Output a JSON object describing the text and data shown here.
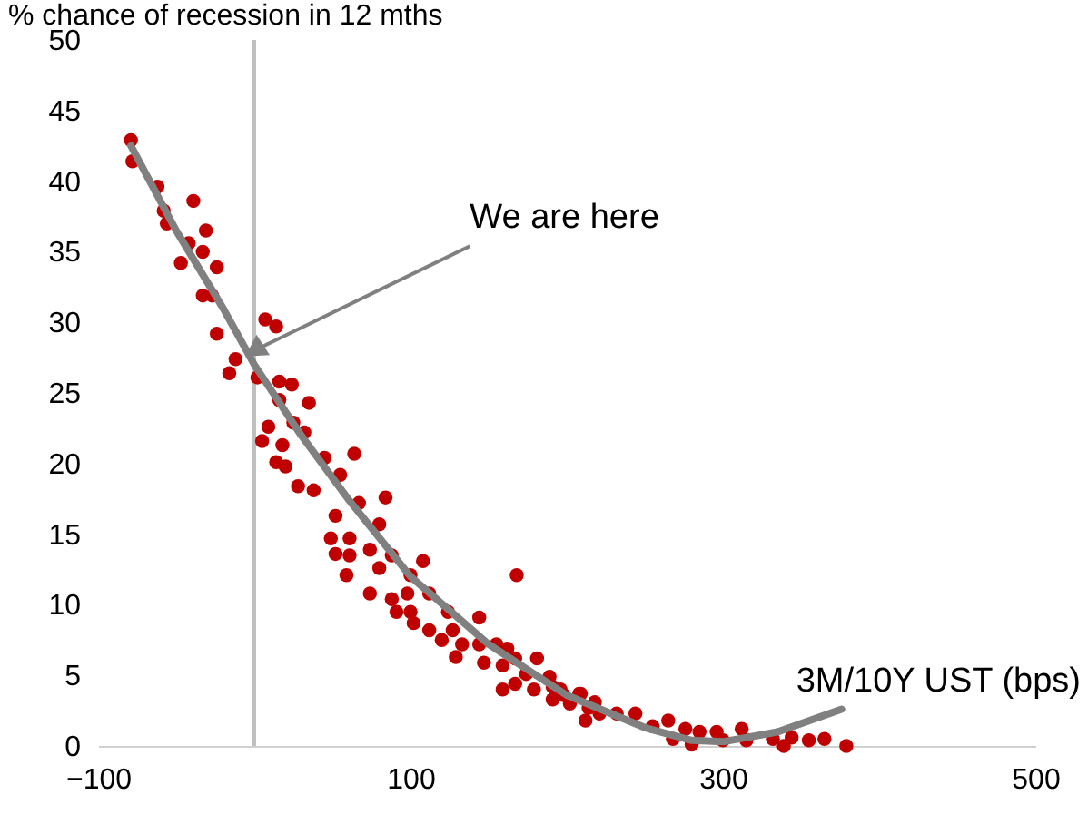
{
  "chart_data": {
    "type": "scatter",
    "ylabel": "% chance of recession in 12 mths",
    "xlabel": "3M/10Y UST (bps)",
    "xlim": [
      -100,
      500
    ],
    "xticks": [
      -100,
      100,
      300,
      500
    ],
    "ylim": [
      0,
      50
    ],
    "yticks": [
      0,
      5,
      10,
      15,
      20,
      25,
      30,
      35,
      40,
      45,
      50
    ],
    "grid": false,
    "marker": "circle",
    "series": [
      {
        "color": "#c00000",
        "x": [
          -79,
          -78,
          -62,
          -58,
          -39,
          -56,
          -31,
          -42,
          -33,
          -47,
          -24,
          -33,
          -27,
          -24,
          -12,
          -16,
          7,
          14,
          2,
          16,
          24,
          35,
          16,
          9,
          25,
          32,
          5,
          18,
          64,
          45,
          14,
          20,
          28,
          38,
          55,
          84,
          67,
          52,
          80,
          49,
          61,
          52,
          61,
          74,
          88,
          108,
          59,
          80,
          100,
          168,
          74,
          88,
          98,
          112,
          91,
          100,
          124,
          144,
          102,
          112,
          127,
          120,
          133,
          144,
          155,
          162,
          129,
          147,
          159,
          167,
          181,
          174,
          189,
          159,
          167,
          179,
          196,
          208,
          191,
          202,
          214,
          221,
          212,
          191,
          198,
          209,
          218,
          232,
          244,
          255,
          265,
          276,
          285,
          296,
          312,
          300,
          315,
          332,
          344,
          355,
          365,
          379,
          280,
          268,
          339
        ],
        "values": [
          42.9,
          41.4,
          39.6,
          37.9,
          38.6,
          37.0,
          36.5,
          35.6,
          35.0,
          34.2,
          33.9,
          31.9,
          31.9,
          29.2,
          27.4,
          26.4,
          30.2,
          29.7,
          26.1,
          25.8,
          25.6,
          24.3,
          24.5,
          22.6,
          22.9,
          22.2,
          21.6,
          21.3,
          20.7,
          20.4,
          20.1,
          19.8,
          18.4,
          18.1,
          19.2,
          17.6,
          17.2,
          16.3,
          15.7,
          14.7,
          14.7,
          13.6,
          13.5,
          13.9,
          13.5,
          13.1,
          12.1,
          12.6,
          12.1,
          12.1,
          10.8,
          10.4,
          10.8,
          10.8,
          9.5,
          9.5,
          9.5,
          9.1,
          8.7,
          8.2,
          8.2,
          7.5,
          7.2,
          7.2,
          7.2,
          6.9,
          6.3,
          5.9,
          5.7,
          6.2,
          6.2,
          5.1,
          4.9,
          4.0,
          4.4,
          4.0,
          4.0,
          3.7,
          3.3,
          3.0,
          2.7,
          2.3,
          1.8,
          4.2,
          3.6,
          3.7,
          3.1,
          2.3,
          2.3,
          1.4,
          1.8,
          1.2,
          1.0,
          1.0,
          1.2,
          0.4,
          0.4,
          0.5,
          0.6,
          0.4,
          0.5,
          0.0,
          0.1,
          0.5,
          0.0
        ]
      },
      {
        "type": "line",
        "marker": "none",
        "color": "#808080",
        "x": [
          -79,
          -50,
          -20,
          0,
          30,
          60,
          100,
          150,
          200,
          250,
          280,
          300,
          335,
          376
        ],
        "values": [
          42.5,
          36.5,
          31,
          27,
          22,
          17.5,
          12,
          7.2,
          3.6,
          1.3,
          0.4,
          0.3,
          1.0,
          2.6
        ]
      }
    ],
    "ref_lines": [
      {
        "axis": "x",
        "value": 0,
        "color": "#bfbfbf"
      }
    ],
    "annotations": [
      {
        "text": "We are here",
        "x": 0,
        "y": 28
      }
    ]
  }
}
